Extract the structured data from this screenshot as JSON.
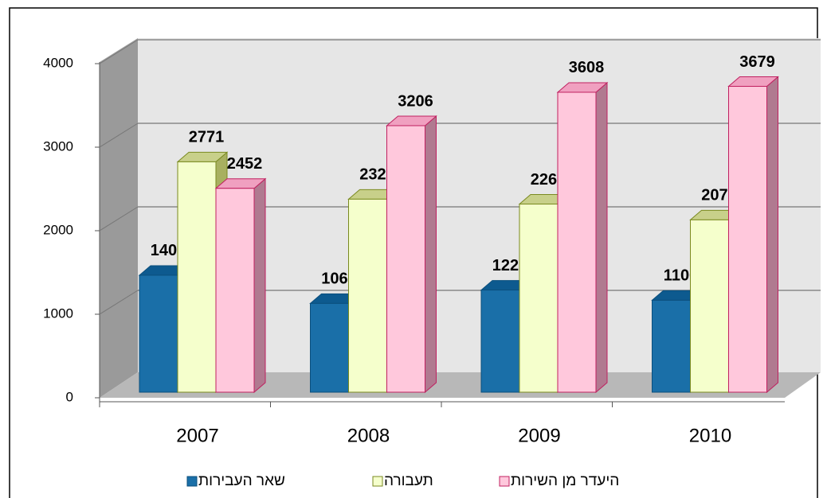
{
  "chart_data": {
    "type": "bar3d",
    "categories": [
      "2007",
      "2008",
      "2009",
      "2010"
    ],
    "series": [
      {
        "name": "שאר העבירות",
        "color": "#1a6fa8",
        "values": [
          1407,
          1068,
          1229,
          1106
        ]
      },
      {
        "name": "תעבורה",
        "color": "#f5ffcc",
        "values": [
          2771,
          2322,
          2263,
          2073
        ]
      },
      {
        "name": "היעדר מן השירות",
        "color": "#ffc8dc",
        "values": [
          2452,
          3206,
          3608,
          3679
        ]
      }
    ],
    "ylim": [
      0,
      4000
    ],
    "yticks": [
      0,
      1000,
      2000,
      3000,
      4000
    ],
    "grid": true,
    "legend": "bottom"
  }
}
